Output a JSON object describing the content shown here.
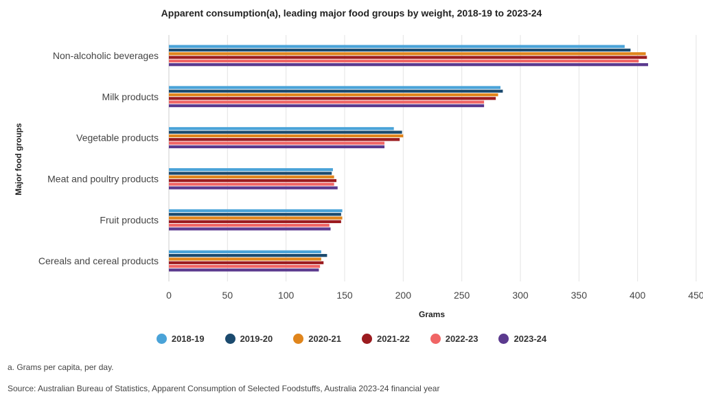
{
  "chart_data": {
    "type": "bar",
    "orientation": "horizontal",
    "title": "Apparent consumption(a), leading major food groups by weight, 2018-19 to 2023-24",
    "xlabel": "Grams",
    "ylabel": "Major food groups",
    "xlim": [
      0,
      450
    ],
    "xticks": [
      0,
      50,
      100,
      150,
      200,
      250,
      300,
      350,
      400,
      450
    ],
    "grid": true,
    "legend_position": "bottom",
    "categories": [
      "Non-alcoholic beverages",
      "Milk products",
      "Vegetable products",
      "Meat and poultry products",
      "Fruit products",
      "Cereals and cereal products"
    ],
    "series": [
      {
        "name": "2018-19",
        "color": "#4aa3d8",
        "values": [
          389,
          283,
          192,
          140,
          148,
          130
        ]
      },
      {
        "name": "2019-20",
        "color": "#1b4a6e",
        "values": [
          394,
          285,
          199,
          139,
          147,
          135
        ]
      },
      {
        "name": "2020-21",
        "color": "#e0851c",
        "values": [
          407,
          281,
          200,
          141,
          148,
          130
        ]
      },
      {
        "name": "2021-22",
        "color": "#9b1b1f",
        "values": [
          408,
          279,
          197,
          143,
          147,
          132
        ]
      },
      {
        "name": "2022-23",
        "color": "#f06565",
        "values": [
          401,
          269,
          184,
          141,
          137,
          129
        ]
      },
      {
        "name": "2023-24",
        "color": "#5b3a8e",
        "values": [
          409,
          269,
          184,
          144,
          138,
          128
        ]
      }
    ]
  },
  "footnote": "a. Grams per capita, per day.",
  "source": "Source: Australian Bureau of Statistics, Apparent Consumption of Selected Foodstuffs, Australia 2023-24 financial year"
}
